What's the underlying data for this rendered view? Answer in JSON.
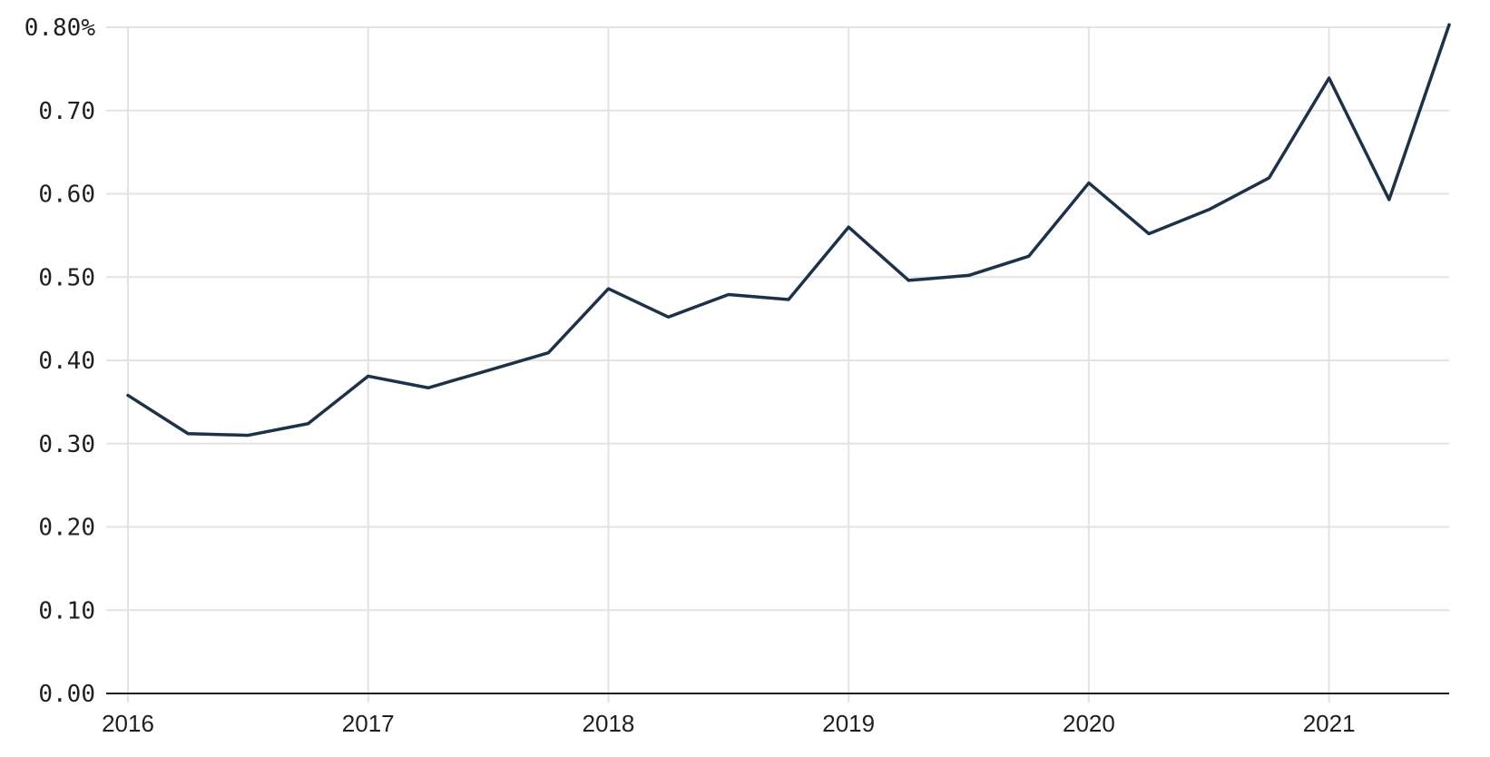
{
  "chart_data": {
    "type": "line",
    "title": "",
    "xlabel": "",
    "ylabel": "",
    "ylim": [
      0,
      0.8
    ],
    "xlim": [
      2016.0,
      2021.5
    ],
    "y_ticks": [
      0.0,
      0.1,
      0.2,
      0.3,
      0.4,
      0.5,
      0.6,
      0.7,
      0.8
    ],
    "y_tick_labels": [
      "0.00",
      "0.10",
      "0.20",
      "0.30",
      "0.40",
      "0.50",
      "0.60",
      "0.70",
      "0.80%"
    ],
    "x_ticks": [
      2016,
      2017,
      2018,
      2019,
      2020,
      2021
    ],
    "x_tick_labels": [
      "2016",
      "2017",
      "2018",
      "2019",
      "2020",
      "2021"
    ],
    "grid": true,
    "colors": {
      "line": "#1d3249",
      "grid": "#e3e3e3",
      "axis": "#1f1f1f"
    },
    "series": [
      {
        "x": [
          2016.0,
          2016.25,
          2016.5,
          2016.75,
          2017.0,
          2017.25,
          2017.5,
          2017.75,
          2018.0,
          2018.25,
          2018.5,
          2018.75,
          2019.0,
          2019.25,
          2019.5,
          2019.75,
          2020.0,
          2020.25,
          2020.5,
          2020.75,
          2021.0,
          2021.25,
          2021.5
        ],
        "values": [
          0.358,
          0.312,
          0.31,
          0.324,
          0.381,
          0.367,
          0.388,
          0.409,
          0.486,
          0.452,
          0.479,
          0.473,
          0.56,
          0.496,
          0.502,
          0.525,
          0.613,
          0.552,
          0.581,
          0.619,
          0.739,
          0.593,
          0.803
        ]
      }
    ]
  }
}
